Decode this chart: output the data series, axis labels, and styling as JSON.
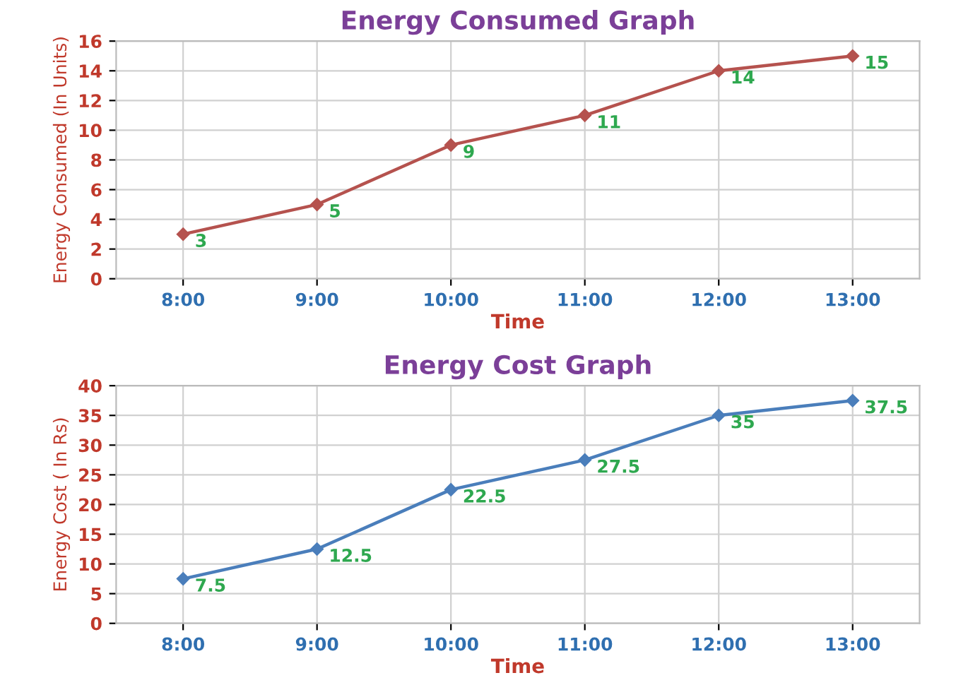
{
  "chart_data": [
    {
      "type": "line",
      "title": "Energy Consumed Graph",
      "xlabel": "Time",
      "ylabel": "Energy Consumed (In Units)",
      "categories": [
        "8:00",
        "9:00",
        "10:00",
        "11:00",
        "12:00",
        "13:00"
      ],
      "series": [
        {
          "color": "#b5524e",
          "values": [
            3,
            5,
            9,
            11,
            14,
            15
          ]
        }
      ],
      "ylim": [
        0,
        16
      ],
      "yticks": [
        0,
        2,
        4,
        6,
        8,
        10,
        12,
        14,
        16
      ],
      "grid": true,
      "marker": "diamond",
      "line_style": "solid",
      "data_labels": true
    },
    {
      "type": "line",
      "title": "Energy Cost Graph",
      "xlabel": "Time",
      "ylabel": "Energy Cost ( In Rs)",
      "categories": [
        "8:00",
        "9:00",
        "10:00",
        "11:00",
        "12:00",
        "13:00"
      ],
      "series": [
        {
          "color": "#4a7ebb",
          "values": [
            7.5,
            12.5,
            22.5,
            27.5,
            35,
            37.5
          ]
        }
      ],
      "ylim": [
        0,
        40
      ],
      "yticks": [
        0,
        5,
        10,
        15,
        20,
        25,
        30,
        35,
        40
      ],
      "grid": true,
      "marker": "diamond",
      "line_style": "solid",
      "data_labels": true
    }
  ]
}
